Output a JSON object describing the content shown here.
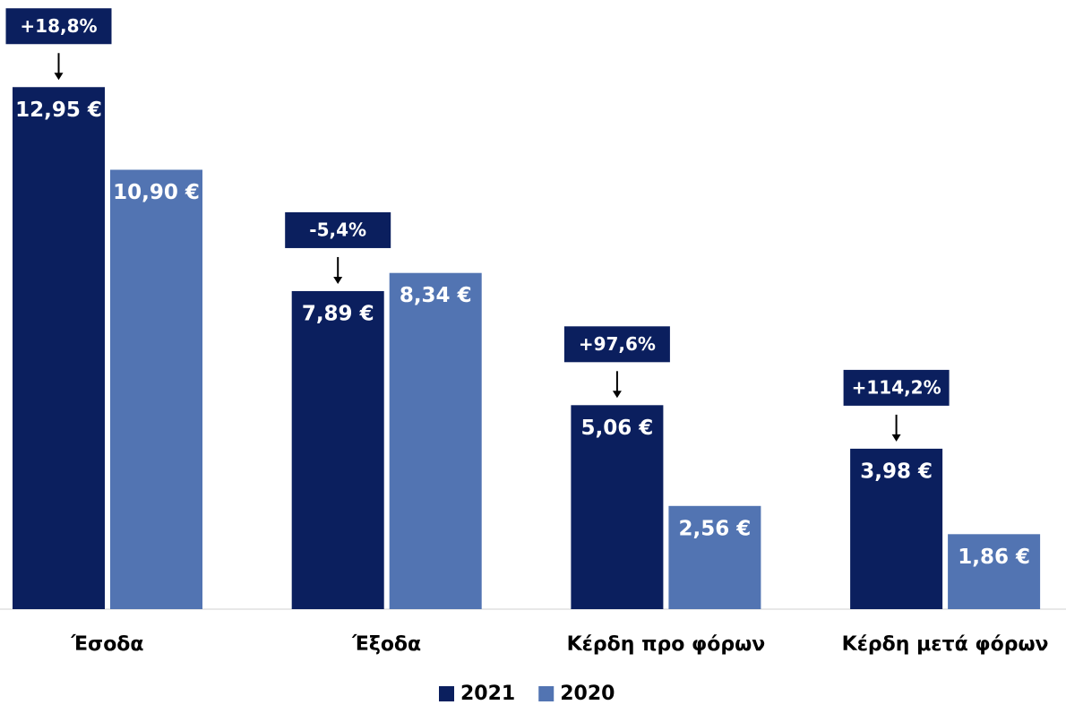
{
  "chart_data": {
    "type": "bar",
    "categories": [
      "Έσοδα",
      "Έξοδα",
      "Κέρδη προ φόρων",
      "Κέρδη μετά φόρων"
    ],
    "series": [
      {
        "name": "2021",
        "color": "#0b1f5e",
        "values": [
          12.95,
          7.89,
          5.06,
          3.98
        ],
        "value_labels": [
          "12,95 €",
          "7,89 €",
          "5,06 €",
          "3,98 €"
        ]
      },
      {
        "name": "2020",
        "color": "#5274b2",
        "values": [
          10.9,
          8.34,
          2.56,
          1.86
        ],
        "value_labels": [
          "10,90 €",
          "8,34 €",
          "2,56 €",
          "1,86 €"
        ]
      }
    ],
    "annotations": [
      "+18,8%",
      "-5,4%",
      "+97,6%",
      "+114,2%"
    ],
    "ylim": [
      0,
      15
    ],
    "legend": "bottom"
  }
}
